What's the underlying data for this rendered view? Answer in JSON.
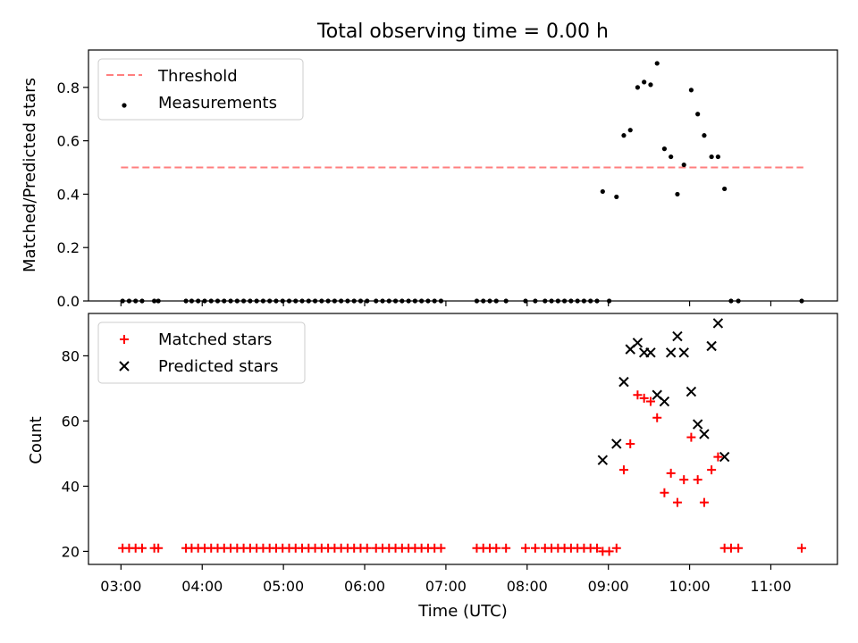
{
  "chart_data": {
    "title": "Total observing time = 0.00 h",
    "xlabel": "Time (UTC)",
    "x_ticks": [
      "03:00",
      "04:00",
      "05:00",
      "06:00",
      "07:00",
      "08:00",
      "09:00",
      "10:00",
      "11:00"
    ],
    "x_tick_hours": [
      3,
      4,
      5,
      6,
      7,
      8,
      9,
      10,
      11
    ],
    "xlim": [
      2.6,
      11.82
    ],
    "panels": [
      {
        "type": "scatter",
        "ylabel": "Matched/Predicted stars",
        "ylim": [
          0,
          0.94
        ],
        "y_ticks": [
          "0.0",
          "0.2",
          "0.4",
          "0.6",
          "0.8"
        ],
        "y_tick_values": [
          0,
          0.2,
          0.4,
          0.6,
          0.8
        ],
        "legend_position": "top-left",
        "threshold": {
          "name": "Threshold",
          "value": 0.5,
          "x_range": [
            3.0,
            11.4
          ],
          "color": "#ff7f7f"
        },
        "series": [
          {
            "name": "Measurements",
            "color": "#000000",
            "marker": "dot",
            "x": [
              3.02,
              3.1,
              3.18,
              3.26,
              3.41,
              3.46,
              3.8,
              3.87,
              3.95,
              4.03,
              4.11,
              4.19,
              4.27,
              4.35,
              4.43,
              4.51,
              4.59,
              4.67,
              4.75,
              4.83,
              4.91,
              4.99,
              5.07,
              5.15,
              5.23,
              5.31,
              5.39,
              5.47,
              5.55,
              5.63,
              5.71,
              5.79,
              5.87,
              5.95,
              6.03,
              6.14,
              6.22,
              6.3,
              6.38,
              6.46,
              6.54,
              6.62,
              6.7,
              6.78,
              6.86,
              6.94,
              7.38,
              7.46,
              7.54,
              7.62,
              7.74,
              7.98,
              8.1,
              8.22,
              8.3,
              8.38,
              8.46,
              8.54,
              8.62,
              8.7,
              8.78,
              8.86,
              8.93,
              9.01,
              9.1,
              9.19,
              9.27,
              9.36,
              9.44,
              9.52,
              9.6,
              9.69,
              9.77,
              9.85,
              9.93,
              10.02,
              10.1,
              10.18,
              10.27,
              10.35,
              10.43,
              10.51,
              10.6,
              11.38
            ],
            "y": [
              0,
              0,
              0,
              0,
              0,
              0,
              0,
              0,
              0,
              0,
              0,
              0,
              0,
              0,
              0,
              0,
              0,
              0,
              0,
              0,
              0,
              0,
              0,
              0,
              0,
              0,
              0,
              0,
              0,
              0,
              0,
              0,
              0,
              0,
              0,
              0,
              0,
              0,
              0,
              0,
              0,
              0,
              0,
              0,
              0,
              0,
              0,
              0,
              0,
              0,
              0,
              0,
              0,
              0,
              0,
              0,
              0,
              0,
              0,
              0,
              0,
              0,
              0.41,
              0,
              0.39,
              0.62,
              0.64,
              0.8,
              0.82,
              0.81,
              0.89,
              0.57,
              0.54,
              0.4,
              0.51,
              0.79,
              0.7,
              0.62,
              0.54,
              0.54,
              0.42,
              0,
              0,
              0
            ]
          }
        ]
      },
      {
        "type": "scatter",
        "ylabel": "Count",
        "ylim": [
          16,
          93
        ],
        "y_ticks": [
          "20",
          "40",
          "60",
          "80"
        ],
        "y_tick_values": [
          20,
          40,
          60,
          80
        ],
        "legend_position": "top-left",
        "series": [
          {
            "name": "Matched stars",
            "color": "#ff0000",
            "marker": "plus",
            "x": [
              3.02,
              3.1,
              3.18,
              3.26,
              3.41,
              3.46,
              3.8,
              3.87,
              3.95,
              4.03,
              4.11,
              4.19,
              4.27,
              4.35,
              4.43,
              4.51,
              4.59,
              4.67,
              4.75,
              4.83,
              4.91,
              4.99,
              5.07,
              5.15,
              5.23,
              5.31,
              5.39,
              5.47,
              5.55,
              5.63,
              5.71,
              5.79,
              5.87,
              5.95,
              6.03,
              6.14,
              6.22,
              6.3,
              6.38,
              6.46,
              6.54,
              6.62,
              6.7,
              6.78,
              6.86,
              6.94,
              7.38,
              7.46,
              7.54,
              7.62,
              7.74,
              7.98,
              8.1,
              8.22,
              8.3,
              8.38,
              8.46,
              8.54,
              8.62,
              8.7,
              8.78,
              8.86,
              8.93,
              9.01,
              9.1,
              9.19,
              9.27,
              9.36,
              9.44,
              9.52,
              9.6,
              9.69,
              9.77,
              9.85,
              9.93,
              10.02,
              10.1,
              10.18,
              10.27,
              10.35,
              10.43,
              10.51,
              10.6,
              11.38
            ],
            "y": [
              21,
              21,
              21,
              21,
              21,
              21,
              21,
              21,
              21,
              21,
              21,
              21,
              21,
              21,
              21,
              21,
              21,
              21,
              21,
              21,
              21,
              21,
              21,
              21,
              21,
              21,
              21,
              21,
              21,
              21,
              21,
              21,
              21,
              21,
              21,
              21,
              21,
              21,
              21,
              21,
              21,
              21,
              21,
              21,
              21,
              21,
              21,
              21,
              21,
              21,
              21,
              21,
              21,
              21,
              21,
              21,
              21,
              21,
              21,
              21,
              21,
              21,
              20,
              20,
              21,
              45,
              53,
              68,
              67,
              66,
              61,
              38,
              44,
              35,
              42,
              55,
              42,
              35,
              45,
              49,
              21,
              21,
              21,
              21
            ]
          },
          {
            "name": "Predicted stars",
            "color": "#000000",
            "marker": "x",
            "x": [
              8.93,
              9.1,
              9.19,
              9.27,
              9.36,
              9.44,
              9.52,
              9.6,
              9.69,
              9.77,
              9.85,
              9.93,
              10.02,
              10.1,
              10.18,
              10.27,
              10.35,
              10.43
            ],
            "y": [
              48,
              53,
              72,
              82,
              84,
              81,
              81,
              68,
              66,
              81,
              86,
              81,
              69,
              59,
              56,
              83,
              90,
              49
            ]
          }
        ]
      }
    ]
  }
}
